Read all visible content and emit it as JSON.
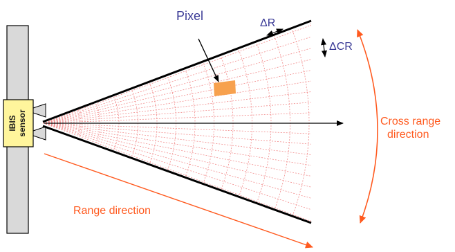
{
  "labels": {
    "pixel": "Pixel",
    "delta_r": "ΔR",
    "delta_cr": "ΔCR",
    "cross_range_line1": "Cross range",
    "cross_range_line2": "direction",
    "range_direction": "Range direction",
    "sensor_line1": "IBIS",
    "sensor_line2": "sensor"
  },
  "colors": {
    "grid": "#f28c8c",
    "pixel_fill": "#f7a14e",
    "orange_arrow": "#ff5a1f",
    "blue_text": "#3a3a96",
    "mast_fill": "#d9d9d9",
    "sensor_fill": "#fff59c",
    "outline": "#000000"
  }
}
